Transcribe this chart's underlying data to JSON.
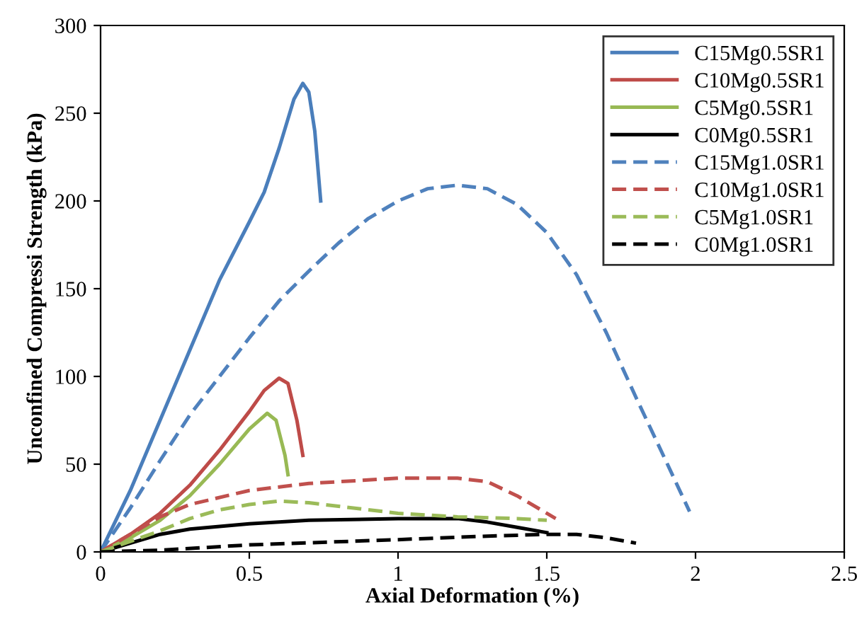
{
  "chart_data": {
    "type": "line",
    "xlabel": "Axial Deformation (%)",
    "ylabel": "Unconfined Compressi Strength (kPa)",
    "xlim": [
      0,
      2.5
    ],
    "xticks": [
      0,
      0.5,
      1,
      1.5,
      2,
      2.5
    ],
    "ylim": [
      0,
      300
    ],
    "yticks": [
      0,
      50,
      100,
      150,
      200,
      250,
      300
    ],
    "grid": false,
    "legend": "top right",
    "marker": "none",
    "series": [
      {
        "name": "C15Mg0.5SR1",
        "color": "#4a7ebb",
        "line_style": "solid",
        "x": [
          0,
          0.1,
          0.2,
          0.3,
          0.4,
          0.5,
          0.55,
          0.6,
          0.65,
          0.68,
          0.7,
          0.72,
          0.74
        ],
        "values": [
          0,
          35,
          75,
          115,
          155,
          188,
          205,
          230,
          258,
          267,
          262,
          240,
          200
        ]
      },
      {
        "name": "C10Mg0.5SR1",
        "color": "#be4b48",
        "line_style": "solid",
        "x": [
          0,
          0.1,
          0.2,
          0.3,
          0.4,
          0.5,
          0.55,
          0.6,
          0.63,
          0.66,
          0.68
        ],
        "values": [
          0,
          10,
          22,
          38,
          58,
          80,
          92,
          99,
          96,
          75,
          55
        ]
      },
      {
        "name": "C5Mg0.5SR1",
        "color": "#98b954",
        "line_style": "solid",
        "x": [
          0,
          0.1,
          0.2,
          0.3,
          0.4,
          0.5,
          0.56,
          0.59,
          0.62,
          0.63
        ],
        "values": [
          0,
          8,
          18,
          32,
          50,
          70,
          79,
          75,
          55,
          44
        ]
      },
      {
        "name": "C0Mg0.5SR1",
        "color": "#000000",
        "line_style": "solid",
        "x": [
          0,
          0.1,
          0.2,
          0.3,
          0.5,
          0.7,
          1.0,
          1.2,
          1.3,
          1.4,
          1.5
        ],
        "values": [
          0,
          5,
          10,
          13,
          16,
          18,
          19,
          19,
          17,
          14,
          11
        ]
      },
      {
        "name": "C15Mg1.0SR1",
        "color": "#4f81bd",
        "line_style": "dashed",
        "x": [
          0,
          0.1,
          0.2,
          0.3,
          0.4,
          0.5,
          0.6,
          0.7,
          0.8,
          0.9,
          1.0,
          1.1,
          1.2,
          1.3,
          1.4,
          1.5,
          1.6,
          1.7,
          1.8,
          1.9,
          1.98
        ],
        "values": [
          0,
          25,
          52,
          78,
          100,
          122,
          143,
          160,
          176,
          190,
          200,
          207,
          209,
          207,
          198,
          182,
          158,
          125,
          88,
          52,
          23
        ]
      },
      {
        "name": "C10Mg1.0SR1",
        "color": "#c0504d",
        "line_style": "dashed",
        "x": [
          0,
          0.1,
          0.2,
          0.3,
          0.5,
          0.7,
          1.0,
          1.2,
          1.3,
          1.4,
          1.5,
          1.53
        ],
        "values": [
          0,
          10,
          20,
          27,
          35,
          39,
          42,
          42,
          40,
          32,
          22,
          19
        ]
      },
      {
        "name": "C5Mg1.0SR1",
        "color": "#9bbb59",
        "line_style": "dashed",
        "x": [
          0,
          0.1,
          0.2,
          0.3,
          0.4,
          0.5,
          0.6,
          0.7,
          0.8,
          1.0,
          1.2,
          1.4,
          1.5
        ],
        "values": [
          0,
          6,
          12,
          19,
          24,
          27,
          29,
          28,
          26,
          22,
          20,
          19,
          18
        ]
      },
      {
        "name": "C0Mg1.0SR1",
        "color": "#000000",
        "line_style": "dashed",
        "x": [
          0,
          0.2,
          0.5,
          1.0,
          1.3,
          1.5,
          1.6,
          1.7,
          1.8
        ],
        "values": [
          0,
          1,
          4,
          7,
          9,
          10,
          10,
          8,
          5
        ]
      }
    ]
  }
}
